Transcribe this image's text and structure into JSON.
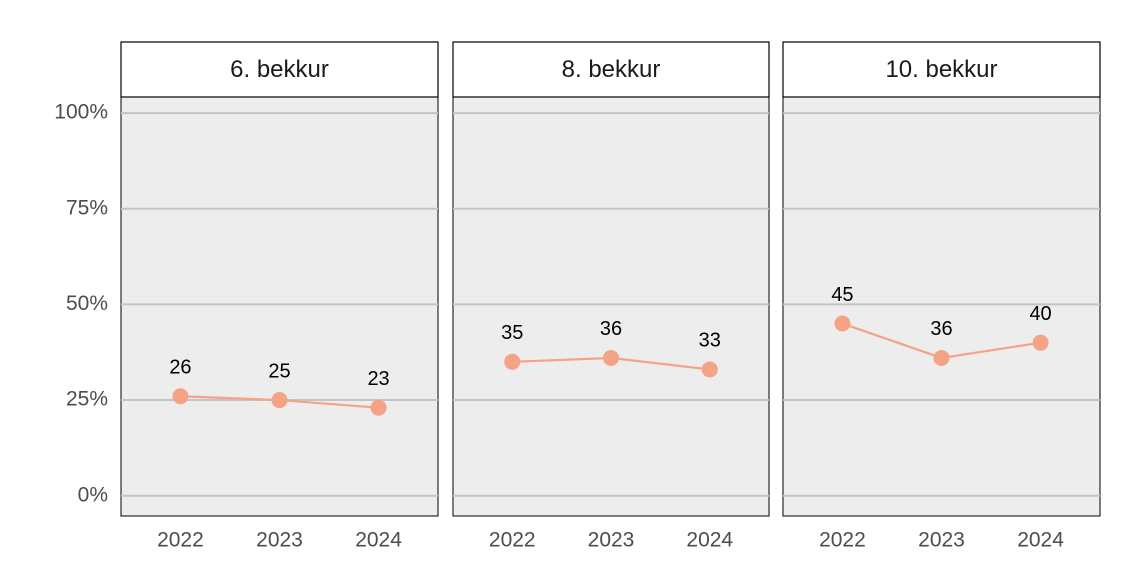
{
  "chart_data": [
    {
      "type": "line",
      "title": "6. bekkur",
      "categories": [
        "2022",
        "2023",
        "2024"
      ],
      "values": [
        26,
        25,
        23
      ],
      "color": "#f4a385",
      "ylim": [
        -5.3,
        104.2
      ],
      "yticks": [
        {
          "value": 0,
          "label": "0%"
        },
        {
          "value": 25,
          "label": "25%"
        },
        {
          "value": 50,
          "label": "50%"
        },
        {
          "value": 75,
          "label": "75%"
        },
        {
          "value": 100,
          "label": "100%"
        }
      ],
      "grid": true
    },
    {
      "type": "line",
      "title": "8. bekkur",
      "categories": [
        "2022",
        "2023",
        "2024"
      ],
      "values": [
        35,
        36,
        33
      ],
      "color": "#f4a385",
      "ylim": [
        -5.3,
        104.2
      ],
      "yticks": [
        {
          "value": 0,
          "label": "0%"
        },
        {
          "value": 25,
          "label": "25%"
        },
        {
          "value": 50,
          "label": "50%"
        },
        {
          "value": 75,
          "label": "75%"
        },
        {
          "value": 100,
          "label": "100%"
        }
      ],
      "grid": true
    },
    {
      "type": "line",
      "title": "10. bekkur",
      "categories": [
        "2022",
        "2023",
        "2024"
      ],
      "values": [
        45,
        36,
        40
      ],
      "color": "#f4a385",
      "ylim": [
        -5.3,
        104.2
      ],
      "yticks": [
        {
          "value": 0,
          "label": "0%"
        },
        {
          "value": 25,
          "label": "25%"
        },
        {
          "value": 50,
          "label": "50%"
        },
        {
          "value": 75,
          "label": "75%"
        },
        {
          "value": 100,
          "label": "100%"
        }
      ],
      "grid": true
    }
  ]
}
